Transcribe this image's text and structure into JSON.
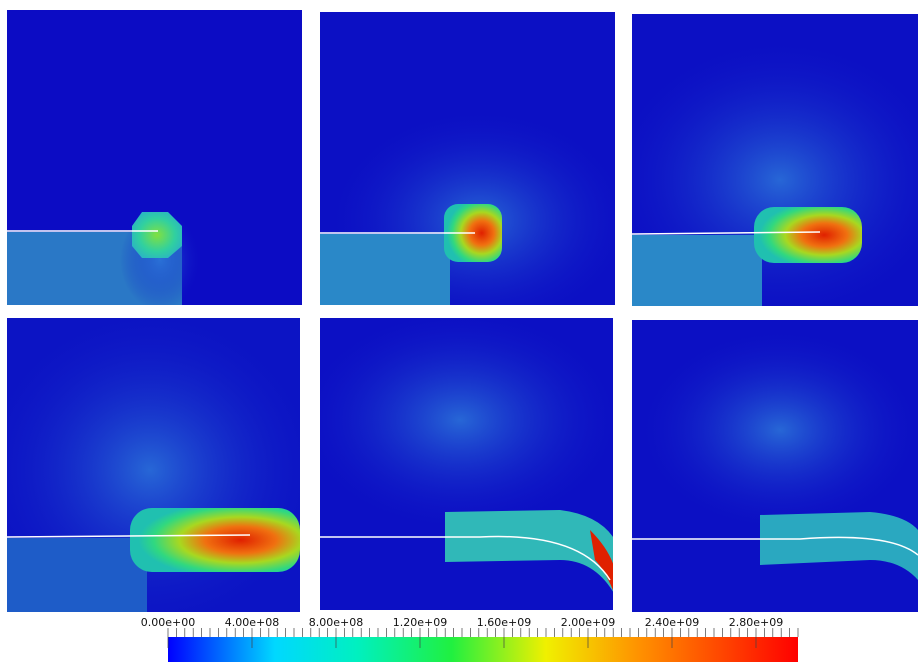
{
  "colorbar": {
    "ticks": [
      "0.00e+00",
      "4.00e+08",
      "8.00e+08",
      "1.20e+09",
      "1.60e+09",
      "2.00e+09",
      "2.40e+09",
      "2.80e+09"
    ]
  }
}
